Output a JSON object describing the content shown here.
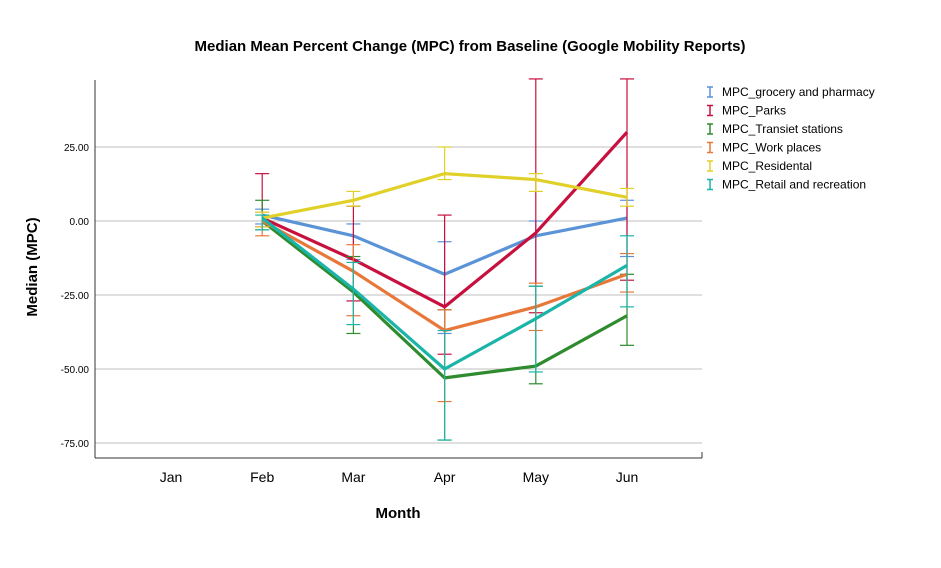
{
  "chart_data": {
    "type": "line",
    "title": "Median Mean Percent Change (MPC) from Baseline (Google Mobility Reports)",
    "xlabel": "Month",
    "ylabel": "Median (MPC)",
    "categories": [
      "Jan",
      "Feb",
      "Mar",
      "Apr",
      "May",
      "Jun"
    ],
    "yticks": [
      "25.00",
      "0.00",
      "-25.00",
      "-50.00",
      "-75.00"
    ],
    "ylim": [
      -80,
      48
    ],
    "grid": true,
    "legend_position": "right",
    "error_bars": true,
    "series": [
      {
        "name": "MPC_grocery and pharmacy",
        "color": "#5b93d7",
        "values": [
          null,
          2,
          -5,
          -18,
          -5,
          1
        ],
        "err_low": [
          null,
          -1,
          -13,
          -38,
          -22,
          -12
        ],
        "err_high": [
          null,
          4,
          -1,
          -7,
          0,
          7
        ]
      },
      {
        "name": "MPC_Parks",
        "color": "#c8103e",
        "values": [
          null,
          1,
          -13,
          -29,
          -4,
          30
        ],
        "err_low": [
          null,
          -2,
          -27,
          -45,
          -31,
          -20
        ],
        "err_high": [
          null,
          16,
          5,
          2,
          48,
          48
        ]
      },
      {
        "name": "MPC_Transiet stations",
        "color": "#2e8b2e",
        "values": [
          null,
          0,
          -24,
          -53,
          -49,
          -32
        ],
        "err_low": [
          null,
          -3,
          -38,
          -74,
          -55,
          -42
        ],
        "err_high": [
          null,
          7,
          -12,
          -30,
          -22,
          -18
        ]
      },
      {
        "name": "MPC_Work places",
        "color": "#e8783a",
        "values": [
          null,
          0,
          -17,
          -37,
          -29,
          -18
        ],
        "err_low": [
          null,
          -5,
          -32,
          -61,
          -37,
          -24
        ],
        "err_high": [
          null,
          3,
          -8,
          -30,
          -21,
          -11
        ]
      },
      {
        "name": "MPC_Residental",
        "color": "#e0d028",
        "values": [
          null,
          1,
          7,
          16,
          14,
          8
        ],
        "err_low": [
          null,
          -2,
          5,
          14,
          10,
          5
        ],
        "err_high": [
          null,
          3,
          10,
          25,
          16,
          11
        ]
      },
      {
        "name": "MPC_Retail and recreation",
        "color": "#1ab5a8",
        "values": [
          null,
          1,
          -23,
          -50,
          -33,
          -15
        ],
        "err_low": [
          null,
          -3,
          -35,
          -74,
          -51,
          -29
        ],
        "err_high": [
          null,
          2,
          -14,
          -37,
          -22,
          -5
        ]
      }
    ]
  }
}
